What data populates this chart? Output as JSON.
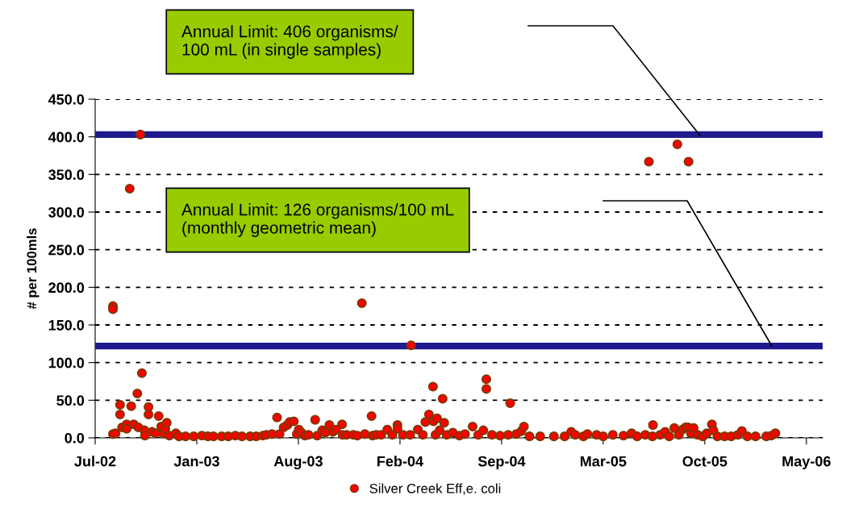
{
  "chart_data": {
    "type": "scatter",
    "ylabel": "# per 100mls",
    "xlim": [
      "2002-07-01",
      "2006-06-02"
    ],
    "xticks": [
      {
        "value": "2002-07-01",
        "label": "Jul-02"
      },
      {
        "value": "2003-01-17",
        "label": "Jan-03"
      },
      {
        "value": "2003-08-05",
        "label": "Aug-03"
      },
      {
        "value": "2004-02-21",
        "label": "Feb-04"
      },
      {
        "value": "2004-09-08",
        "label": "Sep-04"
      },
      {
        "value": "2005-03-27",
        "label": "Mar-05"
      },
      {
        "value": "2005-10-13",
        "label": "Oct-05"
      },
      {
        "value": "2006-05-01",
        "label": "May-06"
      }
    ],
    "ylim": [
      0,
      450
    ],
    "yticks": [
      {
        "value": 0,
        "label": "0.0"
      },
      {
        "value": 50,
        "label": "50.0"
      },
      {
        "value": 100,
        "label": "100.0"
      },
      {
        "value": 150,
        "label": "150.0"
      },
      {
        "value": 200,
        "label": "200.0"
      },
      {
        "value": 250,
        "label": "250.0"
      },
      {
        "value": 300,
        "label": "300.0"
      },
      {
        "value": 350,
        "label": "350.0"
      },
      {
        "value": 400,
        "label": "400.0"
      },
      {
        "value": 450,
        "label": "450.0"
      }
    ],
    "grid": "y",
    "legend": "bottom",
    "marker": "circle",
    "ref_lines": [
      {
        "axis": "y",
        "value": 403,
        "color": "#1f1a8f"
      },
      {
        "axis": "y",
        "value": 122,
        "color": "#1f1a8f"
      }
    ],
    "annotations": [
      "Annual Limit: 406 organisms/\n100 mL (in single samples)",
      "Annual Limit: 126 organisms/100 mL\n(monthly geometric mean)"
    ],
    "series": [
      {
        "name": "Silver Creek Eff,e. coli",
        "color": "#ff0000",
        "x": [
          "2002-08-05",
          "2002-08-05",
          "2002-08-05",
          "2002-08-10",
          "2002-08-19",
          "2002-08-19",
          "2002-08-23",
          "2002-09-01",
          "2002-09-01",
          "2002-09-07",
          "2002-09-10",
          "2002-09-15",
          "2002-09-22",
          "2002-09-24",
          "2002-09-28",
          "2002-10-01",
          "2002-10-06",
          "2002-10-07",
          "2002-10-14",
          "2002-10-14",
          "2002-10-21",
          "2002-10-28",
          "2002-11-03",
          "2002-11-08",
          "2002-11-13",
          "2002-11-16",
          "2002-11-19",
          "2002-11-24",
          "2002-12-07",
          "2002-12-13",
          "2002-12-26",
          "2003-01-11",
          "2003-01-27",
          "2003-02-08",
          "2003-02-19",
          "2003-03-07",
          "2003-03-20",
          "2003-04-03",
          "2003-04-16",
          "2003-05-02",
          "2003-05-14",
          "2003-05-27",
          "2003-06-03",
          "2003-06-14",
          "2003-06-24",
          "2003-06-29",
          "2003-07-07",
          "2003-07-14",
          "2003-07-19",
          "2003-07-27",
          "2003-08-02",
          "2003-08-06",
          "2003-08-11",
          "2003-08-18",
          "2003-08-25",
          "2003-09-07",
          "2003-09-11",
          "2003-09-21",
          "2003-09-27",
          "2003-10-05",
          "2003-10-12",
          "2003-10-18",
          "2003-10-30",
          "2003-10-31",
          "2003-11-08",
          "2003-11-21",
          "2003-11-29",
          "2003-12-08",
          "2003-12-14",
          "2003-12-27",
          "2003-12-29",
          "2004-01-05",
          "2004-01-15",
          "2004-01-27",
          "2004-02-06",
          "2004-02-16",
          "2004-02-16",
          "2004-02-27",
          "2004-03-12",
          "2004-03-14",
          "2004-03-27",
          "2004-04-06",
          "2004-04-11",
          "2004-04-18",
          "2004-04-26",
          "2004-04-27",
          "2004-05-01",
          "2004-05-04",
          "2004-05-09",
          "2004-05-15",
          "2004-05-18",
          "2004-05-23",
          "2004-06-04",
          "2004-06-17",
          "2004-06-28",
          "2004-07-13",
          "2004-07-24",
          "2004-08-03",
          "2004-08-09",
          "2004-08-09",
          "2004-08-20",
          "2004-09-05",
          "2004-09-21",
          "2004-09-25",
          "2004-10-07",
          "2004-10-17",
          "2004-10-22",
          "2004-11-02",
          "2004-11-23",
          "2004-12-20",
          "2005-01-10",
          "2005-01-23",
          "2005-01-31",
          "2005-02-16",
          "2005-02-24",
          "2005-03-14",
          "2005-03-27",
          "2005-04-15",
          "2005-05-06",
          "2005-05-22",
          "2005-06-02",
          "2005-06-18",
          "2005-06-25",
          "2005-07-02",
          "2005-07-03",
          "2005-07-17",
          "2005-07-27",
          "2005-08-04",
          "2005-08-14",
          "2005-08-20",
          "2005-08-23",
          "2005-08-30",
          "2005-09-05",
          "2005-09-10",
          "2005-09-11",
          "2005-09-16",
          "2005-09-21",
          "2005-09-29",
          "2005-10-09",
          "2005-10-17",
          "2005-10-27",
          "2005-10-30",
          "2005-11-07",
          "2005-11-21",
          "2005-12-04",
          "2005-12-17",
          "2005-12-25",
          "2006-01-05",
          "2006-01-21",
          "2006-02-11",
          "2006-02-21",
          "2006-03-01"
        ],
        "values": [
          175,
          171,
          5,
          6,
          44,
          31,
          14,
          18,
          12,
          331,
          42,
          18,
          59,
          14,
          403,
          86,
          10,
          3,
          41,
          31,
          8,
          6,
          29,
          15,
          6,
          12,
          20,
          3,
          6,
          2,
          2,
          2,
          3,
          2,
          2,
          2,
          2,
          3,
          2,
          2,
          2,
          3,
          4,
          5,
          27,
          5,
          14,
          17,
          21,
          22,
          5,
          11,
          7,
          3,
          4,
          24,
          3,
          10,
          7,
          17,
          8,
          11,
          18,
          4,
          4,
          4,
          3,
          179,
          5,
          29,
          3,
          4,
          4,
          11,
          4,
          17,
          12,
          4,
          4,
          123,
          11,
          4,
          21,
          31,
          68,
          22,
          4,
          26,
          10,
          52,
          20,
          4,
          7,
          3,
          5,
          15,
          4,
          10,
          78,
          65,
          4,
          3,
          4,
          46,
          5,
          9,
          15,
          2,
          2,
          2,
          2,
          8,
          4,
          2,
          5,
          4,
          2,
          4,
          3,
          6,
          2,
          4,
          367,
          2,
          17,
          4,
          8,
          2,
          13,
          390,
          4,
          11,
          14,
          14,
          367,
          6,
          13,
          4,
          2,
          6,
          18,
          10,
          2,
          2,
          2,
          4,
          9,
          2,
          2,
          2,
          3,
          6
        ]
      }
    ]
  }
}
